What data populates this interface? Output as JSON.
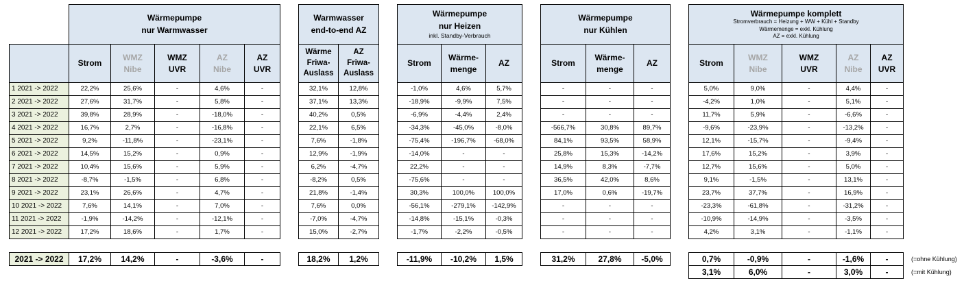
{
  "rows": [
    "1 2021 -> 2022",
    "2 2021 -> 2022",
    "3 2021 -> 2022",
    "4 2021 -> 2022",
    "5 2021 -> 2022",
    "6 2021 -> 2022",
    "7 2021 -> 2022",
    "8 2021 -> 2022",
    "9 2021 -> 2022",
    "10 2021 -> 2022",
    "11 2021 -> 2022",
    "12 2021 -> 2022"
  ],
  "total_label": "2021 -> 2022",
  "ww": {
    "title1": "Wärmepumpe",
    "title2": "nur Warmwasser",
    "cols": [
      [
        "Strom"
      ],
      [
        "WMZ",
        "Nibe"
      ],
      [
        "WMZ",
        "UVR"
      ],
      [
        "AZ",
        "Nibe"
      ],
      [
        "AZ",
        "UVR"
      ]
    ],
    "data": [
      [
        "22,2%",
        "25,6%",
        "-",
        "4,6%",
        "-"
      ],
      [
        "27,6%",
        "31,7%",
        "-",
        "5,8%",
        "-"
      ],
      [
        "39,8%",
        "28,9%",
        "-",
        "-18,0%",
        "-"
      ],
      [
        "16,7%",
        "2,7%",
        "-",
        "-16,8%",
        "-"
      ],
      [
        "9,2%",
        "-11,8%",
        "-",
        "-23,1%",
        "-"
      ],
      [
        "14,5%",
        "15,2%",
        "-",
        "0,9%",
        "-"
      ],
      [
        "10,4%",
        "15,6%",
        "-",
        "5,9%",
        "-"
      ],
      [
        "-8,7%",
        "-1,5%",
        "-",
        "6,8%",
        "-"
      ],
      [
        "23,1%",
        "26,6%",
        "-",
        "4,7%",
        "-"
      ],
      [
        "7,6%",
        "14,1%",
        "-",
        "7,0%",
        "-"
      ],
      [
        "-1,9%",
        "-14,2%",
        "-",
        "-12,1%",
        "-"
      ],
      [
        "17,2%",
        "18,6%",
        "-",
        "1,7%",
        "-"
      ]
    ],
    "total": [
      "17,2%",
      "14,2%",
      "-",
      "-3,6%",
      "-"
    ]
  },
  "e2e": {
    "title1": "Warmwasser",
    "title2": "end-to-end AZ",
    "cols": [
      [
        "Wärme",
        "Friwa-",
        "Auslass"
      ],
      [
        "AZ",
        "Friwa-",
        "Auslass"
      ]
    ],
    "data": [
      [
        "32,1%",
        "12,8%"
      ],
      [
        "37,1%",
        "13,3%"
      ],
      [
        "40,2%",
        "0,5%"
      ],
      [
        "22,1%",
        "6,5%"
      ],
      [
        "7,6%",
        "-1,8%"
      ],
      [
        "12,9%",
        "-1,9%"
      ],
      [
        "6,2%",
        "-4,7%"
      ],
      [
        "-8,2%",
        "0,5%"
      ],
      [
        "21,8%",
        "-1,4%"
      ],
      [
        "7,6%",
        "0,0%"
      ],
      [
        "-7,0%",
        "-4,7%"
      ],
      [
        "15,0%",
        "-2,7%"
      ]
    ],
    "total": [
      "18,2%",
      "1,2%"
    ]
  },
  "heat": {
    "title1": "Wärmepumpe",
    "title2": "nur Heizen",
    "note": "inkl. Standby-Verbrauch",
    "cols": [
      [
        "Strom"
      ],
      [
        "Wärme-",
        "menge"
      ],
      [
        "AZ"
      ]
    ],
    "data": [
      [
        "-1,0%",
        "4,6%",
        "5,7%"
      ],
      [
        "-18,9%",
        "-9,9%",
        "7,5%"
      ],
      [
        "-6,9%",
        "-4,4%",
        "2,4%"
      ],
      [
        "-34,3%",
        "-45,0%",
        "-8,0%"
      ],
      [
        "-75,4%",
        "-196,7%",
        "-68,0%"
      ],
      [
        "-14,0%",
        "-",
        "-"
      ],
      [
        "22,2%",
        "-",
        "-"
      ],
      [
        "-75,6%",
        "-",
        "-"
      ],
      [
        "30,3%",
        "100,0%",
        "100,0%"
      ],
      [
        "-56,1%",
        "-279,1%",
        "-142,9%"
      ],
      [
        "-14,8%",
        "-15,1%",
        "-0,3%"
      ],
      [
        "-1,7%",
        "-2,2%",
        "-0,5%"
      ]
    ],
    "total": [
      "-11,9%",
      "-10,2%",
      "1,5%"
    ]
  },
  "cool": {
    "title1": "Wärmepumpe",
    "title2": "nur Kühlen",
    "cols": [
      [
        "Strom"
      ],
      [
        "Wärme-",
        "menge"
      ],
      [
        "AZ"
      ]
    ],
    "data": [
      [
        "-",
        "-",
        "-"
      ],
      [
        "-",
        "-",
        "-"
      ],
      [
        "-",
        "-",
        "-"
      ],
      [
        "-566,7%",
        "30,8%",
        "89,7%"
      ],
      [
        "84,1%",
        "93,5%",
        "58,9%"
      ],
      [
        "25,8%",
        "15,3%",
        "-14,2%"
      ],
      [
        "14,9%",
        "8,3%",
        "-7,7%"
      ],
      [
        "36,5%",
        "42,0%",
        "8,6%"
      ],
      [
        "17,0%",
        "0,6%",
        "-19,7%"
      ],
      [
        "-",
        "-",
        "-"
      ],
      [
        "-",
        "-",
        "-"
      ],
      [
        "-",
        "-",
        "-"
      ]
    ],
    "total": [
      "31,2%",
      "27,8%",
      "-5,0%"
    ]
  },
  "full": {
    "title": "Wärmepumpe komplett",
    "notes": [
      "Stromverbrauch = Heizung + WW + Kühl + Standby",
      "Wärmemenge = exkl. Kühlung",
      "AZ = exkl. Kühlung"
    ],
    "cols": [
      [
        "Strom"
      ],
      [
        "WMZ",
        "Nibe"
      ],
      [
        "WMZ",
        "UVR"
      ],
      [
        "AZ",
        "Nibe"
      ],
      [
        "AZ",
        "UVR"
      ]
    ],
    "data": [
      [
        "5,0%",
        "9,0%",
        "-",
        "4,4%",
        "-"
      ],
      [
        "-4,2%",
        "1,0%",
        "-",
        "5,1%",
        "-"
      ],
      [
        "11,7%",
        "5,9%",
        "-",
        "-6,6%",
        "-"
      ],
      [
        "-9,6%",
        "-23,9%",
        "-",
        "-13,2%",
        "-"
      ],
      [
        "12,1%",
        "-15,7%",
        "-",
        "-9,4%",
        "-"
      ],
      [
        "17,6%",
        "15,2%",
        "-",
        "3,9%",
        "-"
      ],
      [
        "12,7%",
        "15,6%",
        "-",
        "5,0%",
        "-"
      ],
      [
        "9,1%",
        "-1,5%",
        "-",
        "13,1%",
        "-"
      ],
      [
        "23,7%",
        "37,7%",
        "-",
        "16,9%",
        "-"
      ],
      [
        "-23,3%",
        "-61,8%",
        "-",
        "-31,2%",
        "-"
      ],
      [
        "-10,9%",
        "-14,9%",
        "-",
        "-3,5%",
        "-"
      ],
      [
        "4,2%",
        "3,1%",
        "-",
        "-1,1%",
        "-"
      ]
    ],
    "total1": [
      "0,7%",
      "-0,9%",
      "-",
      "-1,6%",
      "-"
    ],
    "total2": [
      "3,1%",
      "6,0%",
      "-",
      "3,0%",
      "-"
    ],
    "total1_note": "(=ohne Kühlung)",
    "total2_note": "(=mit Kühlung)"
  }
}
